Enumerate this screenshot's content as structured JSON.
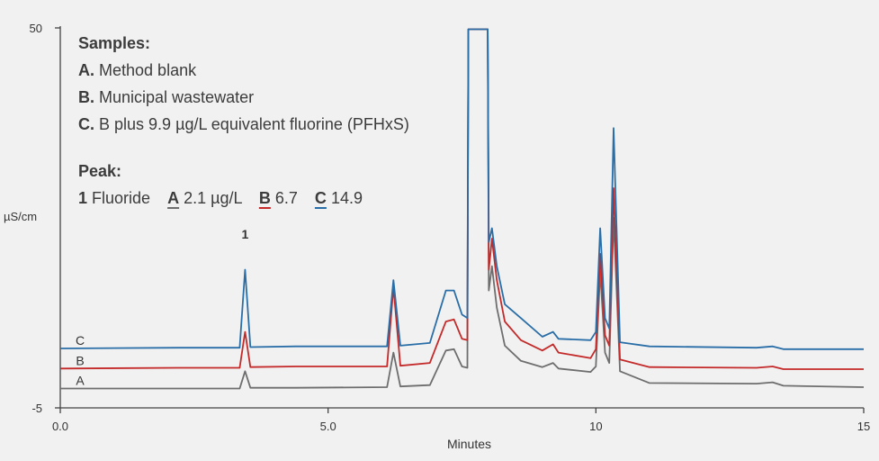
{
  "chart_data": {
    "type": "line",
    "xlabel": "Minutes",
    "ylabel": "µS/cm",
    "xlim": [
      0,
      15
    ],
    "ylim": [
      -5,
      50
    ],
    "x_ticks": [
      "0.0",
      "5.0",
      "10",
      "15"
    ],
    "y_ticks": [
      "50",
      "-5"
    ],
    "grid": false,
    "peak_label": {
      "text": "1",
      "x": 3.45
    },
    "series": [
      {
        "name": "A",
        "color": "#6e6e6e",
        "points": [
          [
            0,
            -2.2
          ],
          [
            2.2,
            -2.2
          ],
          [
            3.35,
            -2.2
          ],
          [
            3.45,
            0.3
          ],
          [
            3.55,
            -2.1
          ],
          [
            4.4,
            -2.1
          ],
          [
            6.1,
            -2.0
          ],
          [
            6.22,
            3.0
          ],
          [
            6.35,
            -1.9
          ],
          [
            6.9,
            -1.7
          ],
          [
            7.2,
            3.3
          ],
          [
            7.35,
            3.5
          ],
          [
            7.5,
            1.0
          ],
          [
            7.6,
            0.8
          ],
          [
            7.62,
            49.8
          ],
          [
            7.98,
            49.8
          ],
          [
            8.0,
            12.0
          ],
          [
            8.06,
            15.5
          ],
          [
            8.15,
            9.5
          ],
          [
            8.3,
            4.0
          ],
          [
            8.6,
            1.8
          ],
          [
            9.0,
            0.9
          ],
          [
            9.2,
            1.5
          ],
          [
            9.3,
            0.7
          ],
          [
            9.9,
            0.2
          ],
          [
            10.0,
            1.0
          ],
          [
            10.08,
            14.8
          ],
          [
            10.17,
            3.0
          ],
          [
            10.25,
            1.5
          ],
          [
            10.33,
            22.5
          ],
          [
            10.45,
            0.3
          ],
          [
            11.0,
            -1.4
          ],
          [
            13.0,
            -1.5
          ],
          [
            13.3,
            -1.3
          ],
          [
            13.5,
            -1.8
          ],
          [
            15,
            -2.0
          ]
        ]
      },
      {
        "name": "B",
        "color": "#c42a2a",
        "points": [
          [
            0,
            0.7
          ],
          [
            2.2,
            0.8
          ],
          [
            3.35,
            0.8
          ],
          [
            3.45,
            6.0
          ],
          [
            3.55,
            0.9
          ],
          [
            4.4,
            1.0
          ],
          [
            6.1,
            1.0
          ],
          [
            6.22,
            12.5
          ],
          [
            6.35,
            1.1
          ],
          [
            6.9,
            1.5
          ],
          [
            7.2,
            7.5
          ],
          [
            7.35,
            7.8
          ],
          [
            7.5,
            5.0
          ],
          [
            7.6,
            4.8
          ],
          [
            7.62,
            49.8
          ],
          [
            7.98,
            49.8
          ],
          [
            8.0,
            15.0
          ],
          [
            8.06,
            19.5
          ],
          [
            8.15,
            13.5
          ],
          [
            8.3,
            7.5
          ],
          [
            8.6,
            4.8
          ],
          [
            9.0,
            3.3
          ],
          [
            9.2,
            4.2
          ],
          [
            9.3,
            3.0
          ],
          [
            9.9,
            2.2
          ],
          [
            10.0,
            3.5
          ],
          [
            10.08,
            17.3
          ],
          [
            10.17,
            5.5
          ],
          [
            10.25,
            4.0
          ],
          [
            10.33,
            26.8
          ],
          [
            10.45,
            2.0
          ],
          [
            11.0,
            0.9
          ],
          [
            13.0,
            0.8
          ],
          [
            13.3,
            1.0
          ],
          [
            13.5,
            0.6
          ],
          [
            15,
            0.6
          ]
        ]
      },
      {
        "name": "C",
        "color": "#2a6ea8",
        "points": [
          [
            0,
            3.6
          ],
          [
            2.2,
            3.7
          ],
          [
            3.35,
            3.7
          ],
          [
            3.45,
            15.0
          ],
          [
            3.55,
            3.8
          ],
          [
            4.4,
            3.9
          ],
          [
            6.1,
            3.9
          ],
          [
            6.22,
            13.5
          ],
          [
            6.35,
            4.0
          ],
          [
            6.9,
            4.4
          ],
          [
            7.2,
            12.0
          ],
          [
            7.35,
            12.0
          ],
          [
            7.5,
            8.5
          ],
          [
            7.6,
            8.0
          ],
          [
            7.62,
            49.8
          ],
          [
            7.98,
            49.8
          ],
          [
            8.0,
            19.0
          ],
          [
            8.06,
            21.0
          ],
          [
            8.15,
            15.5
          ],
          [
            8.3,
            10.0
          ],
          [
            8.6,
            8.0
          ],
          [
            9.0,
            5.3
          ],
          [
            9.2,
            6.0
          ],
          [
            9.3,
            5.0
          ],
          [
            9.9,
            4.8
          ],
          [
            10.0,
            6.0
          ],
          [
            10.08,
            21.0
          ],
          [
            10.17,
            8.0
          ],
          [
            10.25,
            6.5
          ],
          [
            10.33,
            35.5
          ],
          [
            10.45,
            4.5
          ],
          [
            11.0,
            3.9
          ],
          [
            13.0,
            3.7
          ],
          [
            13.3,
            3.9
          ],
          [
            13.5,
            3.5
          ],
          [
            15,
            3.5
          ]
        ]
      }
    ]
  },
  "legend": {
    "samples_title": "Samples:",
    "samples": [
      {
        "key": "A.",
        "text": "Method blank"
      },
      {
        "key": "B.",
        "text": "Municipal wastewater"
      },
      {
        "key": "C.",
        "text": "B plus 9.9 µg/L equivalent fluorine (PFHxS)"
      }
    ],
    "peak_title": "Peak:",
    "peak": {
      "number": "1",
      "name": "Fluoride",
      "values": [
        {
          "key": "A",
          "value": "2.1 µg/L",
          "color": "#6e6e6e"
        },
        {
          "key": "B",
          "value": "6.7",
          "color": "#c42a2a"
        },
        {
          "key": "C",
          "value": "14.9",
          "color": "#2a6ea8"
        }
      ]
    }
  }
}
